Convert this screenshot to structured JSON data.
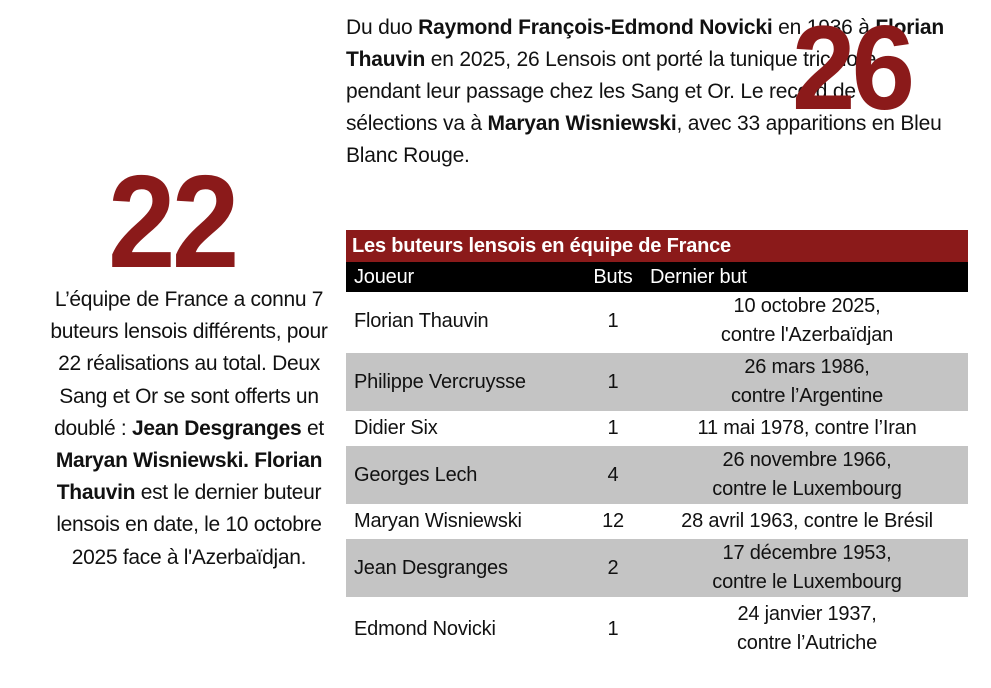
{
  "left_stat": {
    "number": "22",
    "p1": "L’équipe de France a connu 7 buteurs lensois différents, pour 22 réalisations au total. Deux Sang et Or se sont offerts un doublé : ",
    "b1": "Jean Desgranges",
    "p2": " et ",
    "b2": "Maryan Wisniewski. Florian Thauvin",
    "p3": " est le dernier buteur lensois en date, le 10 octobre 2025 face à l'Azerbaïdjan."
  },
  "right_stat": {
    "number": "26",
    "p1": "Du duo ",
    "b1": "Raymond François-Edmond Novicki",
    "p2": " en 1936 à ",
    "b2": "Florian Thauvin",
    "p3": " en 2025, 26 Lensois ont porté la tunique tricolore pendant leur passage chez les Sang et Or. Le record de sélections va à ",
    "b3": "Maryan Wisniewski",
    "p4": ", avec 33 apparitions en Bleu Blanc Rouge."
  },
  "table": {
    "title": "Les buteurs lensois en équipe de France",
    "headers": {
      "player": "Joueur",
      "goals": "Buts",
      "last_goal": "Dernier but"
    },
    "rows": [
      {
        "player": "Florian Thauvin",
        "goals": "1",
        "date": "10 octobre 2025,",
        "opponent": "contre l'Azerbaïdjan"
      },
      {
        "player": "Philippe Vercruysse",
        "goals": "1",
        "date": "26 mars 1986,",
        "opponent": "contre l’Argentine"
      },
      {
        "player": "Didier Six",
        "goals": "1",
        "last_goal": "11 mai 1978, contre l’Iran"
      },
      {
        "player": "Georges Lech",
        "goals": "4",
        "date": "26 novembre 1966,",
        "opponent": "contre le Luxembourg"
      },
      {
        "player": "Maryan Wisniewski",
        "goals": "12",
        "last_goal": "28 avril 1963, contre le Brésil"
      },
      {
        "player": "Jean Desgranges",
        "goals": "2",
        "date": "17 décembre 1953,",
        "opponent": "contre le Luxembourg"
      },
      {
        "player": "Edmond Novicki",
        "goals": "1",
        "date": "24 janvier 1937,",
        "opponent": "contre l’Autriche"
      }
    ]
  },
  "colors": {
    "accent": "#8b1a1a",
    "row_shade": "#c4c4c4",
    "header_bg": "#000000"
  }
}
